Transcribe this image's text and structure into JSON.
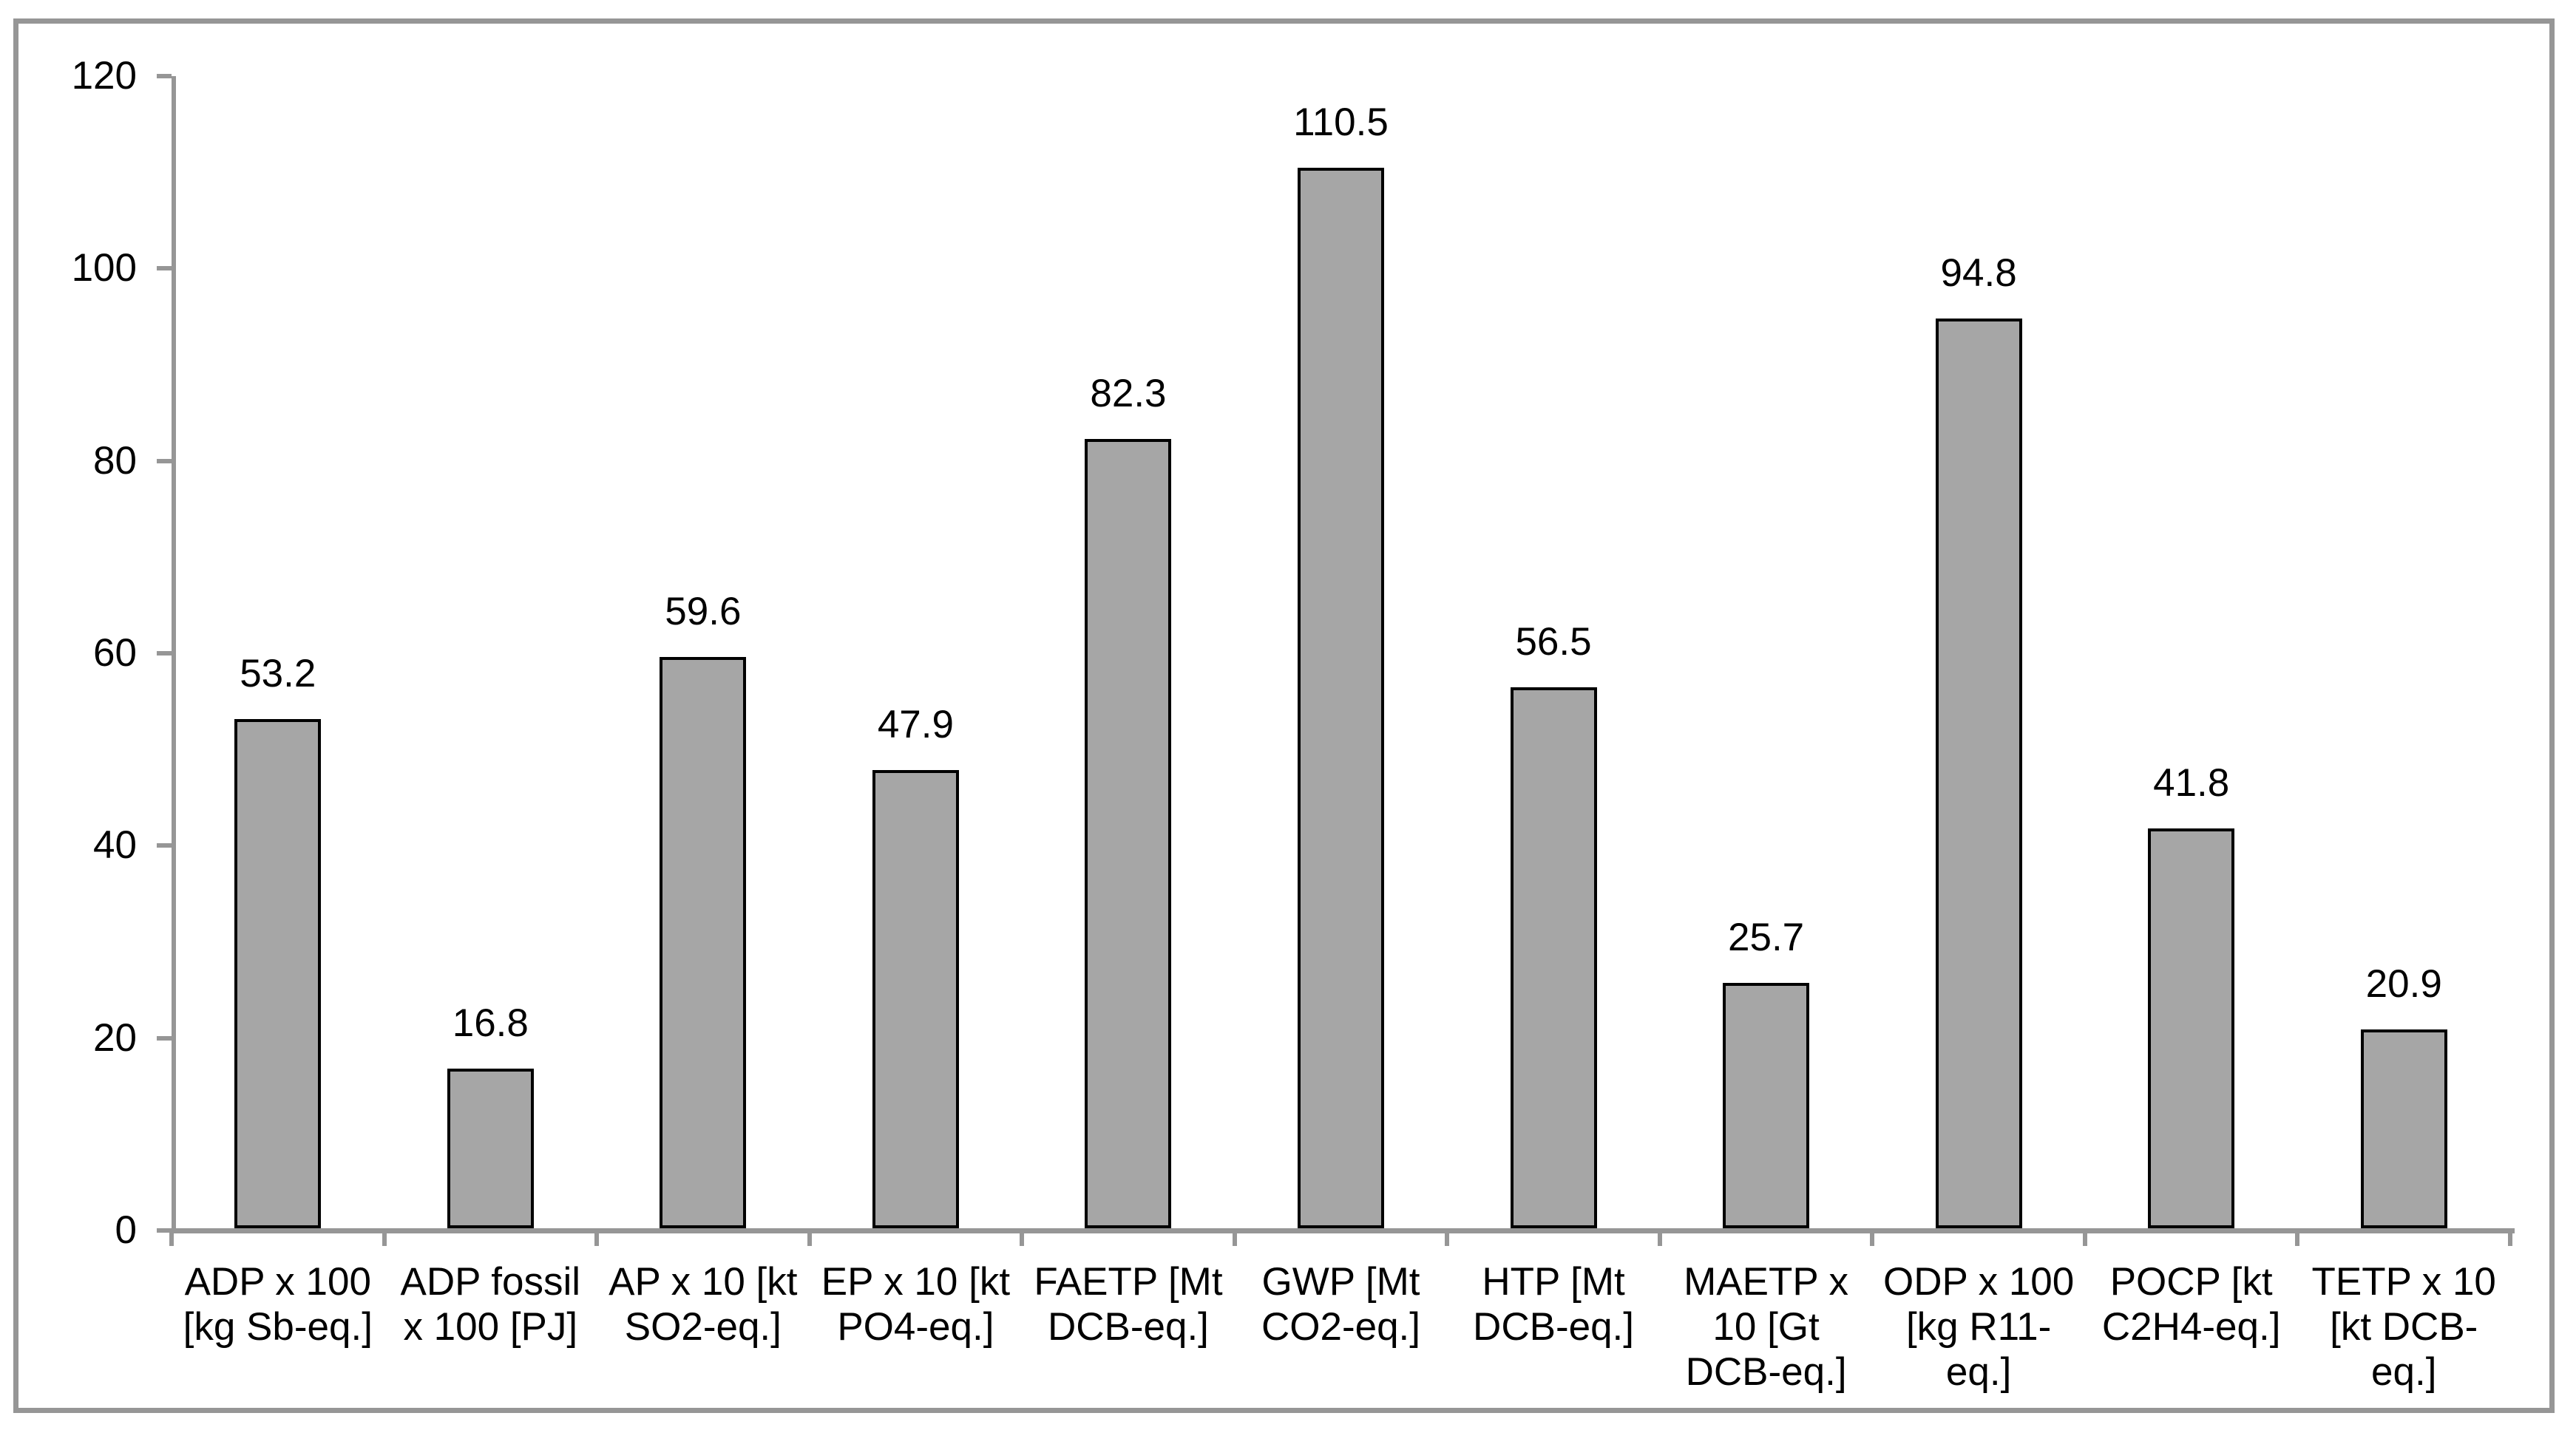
{
  "chart_data": {
    "type": "bar",
    "title": "",
    "xlabel": "",
    "ylabel": "",
    "legend": "none",
    "grid": false,
    "ylim": [
      0,
      120
    ],
    "yticks": [
      0,
      20,
      40,
      60,
      80,
      100,
      120
    ],
    "categories": [
      "ADP x 100 [kg Sb-eq.]",
      "ADP fossil x 100 [PJ]",
      "AP x 10 [kt SO2-eq.]",
      "EP x 10 [kt PO4-eq.]",
      "FAETP [Mt DCB-eq.]",
      "GWP [Mt CO2-eq.]",
      "HTP [Mt DCB-eq.]",
      "MAETP x 10 [Gt DCB-eq.]",
      "ODP x 100 [kg R11-eq.]",
      "POCP [kt C2H4-eq.]",
      "TETP x 10 [kt DCB-eq.]"
    ],
    "category_lines": [
      [
        "ADP x 100",
        "[kg Sb-eq.]"
      ],
      [
        "ADP fossil",
        "x 100 [PJ]"
      ],
      [
        "AP x 10 [kt",
        "SO2-eq.]"
      ],
      [
        "EP x 10 [kt",
        "PO4-eq.]"
      ],
      [
        "FAETP [Mt",
        "DCB-eq.]"
      ],
      [
        "GWP [Mt",
        "CO2-eq.]"
      ],
      [
        "HTP [Mt",
        "DCB-eq.]"
      ],
      [
        "MAETP x",
        "10 [Gt",
        "DCB-eq.]"
      ],
      [
        "ODP x 100",
        "[kg R11-",
        "eq.]"
      ],
      [
        "POCP [kt",
        "C2H4-eq.]"
      ],
      [
        "TETP x 10",
        "[kt DCB-",
        "eq.]"
      ]
    ],
    "values": [
      53.2,
      16.8,
      59.6,
      47.9,
      82.3,
      110.5,
      56.5,
      25.7,
      94.8,
      41.8,
      20.9
    ],
    "data_labels": [
      "53.2",
      "16.8",
      "59.6",
      "47.9",
      "82.3",
      "110.5",
      "56.5",
      "25.7",
      "94.8",
      "41.8",
      "20.9"
    ],
    "colors": {
      "bar_fill": "#A6A6A6",
      "bar_border": "#000000",
      "axis": "#969696",
      "frame": "#969696",
      "text": "#000000",
      "background": "#FFFFFF"
    }
  }
}
